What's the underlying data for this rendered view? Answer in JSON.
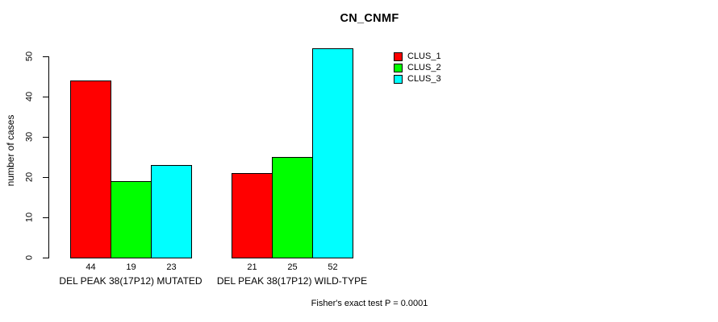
{
  "title": "CN_CNMF",
  "caption": "Fisher's exact test P = 0.0001",
  "y_axis": {
    "label": "number of cases",
    "ticks": [
      0,
      10,
      20,
      30,
      40,
      50
    ]
  },
  "legend": {
    "position": "top-right",
    "items": [
      {
        "label": "CLUS_1",
        "color": "#FF0000"
      },
      {
        "label": "CLUS_2",
        "color": "#00FF00"
      },
      {
        "label": "CLUS_3",
        "color": "#00FFFF"
      }
    ]
  },
  "chart_data": {
    "type": "bar",
    "title": "CN_CNMF",
    "xlabel": "",
    "ylabel": "number of cases",
    "ylim": [
      0,
      50
    ],
    "yticks": [
      0,
      10,
      20,
      30,
      40,
      50
    ],
    "grid": false,
    "legend_position": "top-right",
    "categories": [
      "DEL PEAK 38(17P12) MUTATED",
      "DEL PEAK 38(17P12) WILD-TYPE"
    ],
    "series": [
      {
        "name": "CLUS_1",
        "color": "#FF0000",
        "values": [
          44,
          21
        ]
      },
      {
        "name": "CLUS_2",
        "color": "#00FF00",
        "values": [
          19,
          25
        ]
      },
      {
        "name": "CLUS_3",
        "color": "#00FFFF",
        "values": [
          23,
          52
        ]
      }
    ],
    "bar_value_labels": [
      [
        44,
        19,
        23
      ],
      [
        21,
        25,
        52
      ]
    ],
    "annotation": "Fisher's exact test P = 0.0001"
  }
}
